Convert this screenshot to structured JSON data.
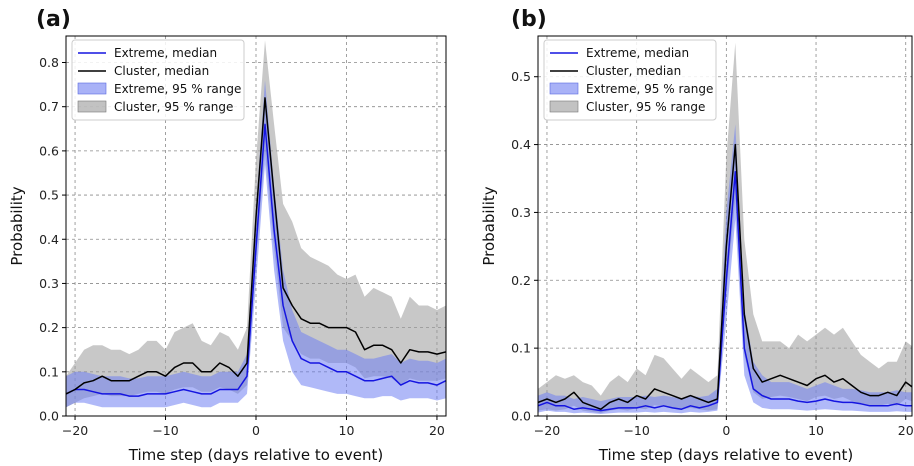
{
  "colors": {
    "extreme": "#1515e0",
    "cluster": "#000000",
    "extreme_band": "#6f7ff2",
    "cluster_band": "#9a9a9a"
  },
  "chart_data": [
    {
      "type": "line",
      "panel_label": "(a)",
      "xlabel": "Time step (days relative to event)",
      "ylabel": "Probability",
      "xlim": [
        -21,
        21
      ],
      "ylim": [
        0,
        0.86
      ],
      "xticks": [
        -20,
        -10,
        0,
        10,
        20
      ],
      "yticks": [
        0.0,
        0.1,
        0.2,
        0.3,
        0.4,
        0.5,
        0.6,
        0.7,
        0.8
      ],
      "ytick_labels": [
        "0.0",
        "0.1",
        "0.2",
        "0.3",
        "0.4",
        "0.5",
        "0.6",
        "0.7",
        "0.8"
      ],
      "grid": true,
      "legend_position": "top-left",
      "legend": [
        "Extreme, median",
        "Cluster, median",
        "Extreme, 95 % range",
        "Cluster, 95 % range"
      ],
      "x": [
        -21,
        -20,
        -19,
        -18,
        -17,
        -16,
        -15,
        -14,
        -13,
        -12,
        -11,
        -10,
        -9,
        -8,
        -7,
        -6,
        -5,
        -4,
        -3,
        -2,
        -1,
        0,
        1,
        2,
        3,
        4,
        5,
        6,
        7,
        8,
        9,
        10,
        11,
        12,
        13,
        14,
        15,
        16,
        17,
        18,
        19,
        20,
        21
      ],
      "series": [
        {
          "name": "Extreme, median",
          "kind": "line",
          "values": [
            0.05,
            0.06,
            0.06,
            0.055,
            0.05,
            0.05,
            0.05,
            0.045,
            0.045,
            0.05,
            0.05,
            0.05,
            0.055,
            0.06,
            0.055,
            0.05,
            0.05,
            0.06,
            0.06,
            0.06,
            0.09,
            0.38,
            0.66,
            0.42,
            0.25,
            0.17,
            0.13,
            0.12,
            0.12,
            0.11,
            0.1,
            0.1,
            0.09,
            0.08,
            0.08,
            0.085,
            0.09,
            0.07,
            0.08,
            0.075,
            0.075,
            0.07,
            0.08
          ]
        },
        {
          "name": "Cluster, median",
          "kind": "line",
          "values": [
            0.05,
            0.06,
            0.075,
            0.08,
            0.09,
            0.08,
            0.08,
            0.08,
            0.09,
            0.1,
            0.1,
            0.09,
            0.11,
            0.12,
            0.12,
            0.1,
            0.1,
            0.12,
            0.11,
            0.09,
            0.12,
            0.45,
            0.72,
            0.5,
            0.29,
            0.25,
            0.22,
            0.21,
            0.21,
            0.2,
            0.2,
            0.2,
            0.19,
            0.15,
            0.16,
            0.16,
            0.15,
            0.12,
            0.15,
            0.145,
            0.145,
            0.14,
            0.145
          ]
        },
        {
          "name": "Extreme, 95 % range",
          "kind": "band",
          "low": [
            0.02,
            0.03,
            0.03,
            0.025,
            0.02,
            0.02,
            0.02,
            0.02,
            0.02,
            0.02,
            0.02,
            0.02,
            0.025,
            0.03,
            0.025,
            0.02,
            0.02,
            0.03,
            0.03,
            0.03,
            0.05,
            0.3,
            0.57,
            0.33,
            0.17,
            0.1,
            0.07,
            0.065,
            0.06,
            0.055,
            0.05,
            0.05,
            0.045,
            0.04,
            0.04,
            0.045,
            0.045,
            0.035,
            0.04,
            0.04,
            0.04,
            0.035,
            0.04
          ],
          "high": [
            0.09,
            0.1,
            0.1,
            0.095,
            0.09,
            0.09,
            0.09,
            0.085,
            0.085,
            0.09,
            0.09,
            0.09,
            0.095,
            0.1,
            0.095,
            0.09,
            0.09,
            0.1,
            0.1,
            0.1,
            0.14,
            0.47,
            0.76,
            0.52,
            0.33,
            0.24,
            0.19,
            0.18,
            0.17,
            0.16,
            0.15,
            0.15,
            0.14,
            0.13,
            0.13,
            0.135,
            0.14,
            0.12,
            0.13,
            0.125,
            0.125,
            0.12,
            0.13
          ]
        },
        {
          "name": "Cluster, 95 % range",
          "kind": "band",
          "low": [
            0.02,
            0.03,
            0.04,
            0.045,
            0.05,
            0.045,
            0.045,
            0.045,
            0.05,
            0.055,
            0.055,
            0.05,
            0.06,
            0.065,
            0.065,
            0.055,
            0.055,
            0.065,
            0.06,
            0.05,
            0.07,
            0.35,
            0.6,
            0.38,
            0.2,
            0.17,
            0.14,
            0.13,
            0.13,
            0.12,
            0.12,
            0.12,
            0.11,
            0.085,
            0.09,
            0.09,
            0.085,
            0.07,
            0.085,
            0.08,
            0.08,
            0.08,
            0.085
          ],
          "high": [
            0.09,
            0.12,
            0.15,
            0.16,
            0.16,
            0.15,
            0.15,
            0.14,
            0.15,
            0.17,
            0.17,
            0.15,
            0.19,
            0.2,
            0.21,
            0.17,
            0.16,
            0.19,
            0.18,
            0.15,
            0.2,
            0.58,
            0.85,
            0.66,
            0.48,
            0.44,
            0.38,
            0.36,
            0.35,
            0.34,
            0.32,
            0.31,
            0.32,
            0.27,
            0.29,
            0.28,
            0.27,
            0.22,
            0.27,
            0.25,
            0.25,
            0.24,
            0.25
          ]
        }
      ]
    },
    {
      "type": "line",
      "panel_label": "(b)",
      "xlabel": "Time step (days relative to event)",
      "ylabel": "Probability",
      "xlim": [
        -21,
        20.7
      ],
      "ylim": [
        0,
        0.56
      ],
      "xticks": [
        -20,
        -10,
        0,
        10,
        20
      ],
      "xtick_labels": [
        "−20",
        "−10",
        "0",
        "10",
        "20"
      ],
      "yticks": [
        0.0,
        0.1,
        0.2,
        0.3,
        0.4,
        0.5
      ],
      "ytick_labels": [
        "0.0",
        "0.1",
        "0.2",
        "0.3",
        "0.4",
        "0.5"
      ],
      "grid": true,
      "legend_position": "top-left",
      "legend": [
        "Extreme, median",
        "Cluster, median",
        "Extreme, 95 % range",
        "Cluster, 95 % range"
      ],
      "x": [
        -21,
        -20,
        -19,
        -18,
        -17,
        -16,
        -15,
        -14,
        -13,
        -12,
        -11,
        -10,
        -9,
        -8,
        -7,
        -6,
        -5,
        -4,
        -3,
        -2,
        -1,
        0,
        1,
        2,
        3,
        4,
        5,
        6,
        7,
        8,
        9,
        10,
        11,
        12,
        13,
        14,
        15,
        16,
        17,
        18,
        19,
        20,
        21
      ],
      "series": [
        {
          "name": "Extreme, median",
          "kind": "line",
          "values": [
            0.015,
            0.02,
            0.015,
            0.015,
            0.01,
            0.012,
            0.01,
            0.008,
            0.01,
            0.012,
            0.012,
            0.012,
            0.015,
            0.012,
            0.015,
            0.012,
            0.01,
            0.015,
            0.012,
            0.015,
            0.02,
            0.2,
            0.36,
            0.1,
            0.04,
            0.03,
            0.025,
            0.025,
            0.025,
            0.022,
            0.02,
            0.022,
            0.025,
            0.022,
            0.02,
            0.02,
            0.018,
            0.015,
            0.015,
            0.015,
            0.018,
            0.015,
            0.015
          ]
        },
        {
          "name": "Cluster, median",
          "kind": "line",
          "values": [
            0.02,
            0.025,
            0.02,
            0.025,
            0.035,
            0.02,
            0.015,
            0.01,
            0.02,
            0.025,
            0.02,
            0.03,
            0.025,
            0.04,
            0.035,
            0.03,
            0.025,
            0.03,
            0.025,
            0.02,
            0.025,
            0.25,
            0.4,
            0.15,
            0.07,
            0.05,
            0.055,
            0.06,
            0.055,
            0.05,
            0.045,
            0.055,
            0.06,
            0.05,
            0.055,
            0.045,
            0.035,
            0.03,
            0.03,
            0.035,
            0.03,
            0.05,
            0.04
          ]
        },
        {
          "name": "Extreme, 95 % range",
          "kind": "band",
          "low": [
            0.005,
            0.008,
            0.006,
            0.006,
            0.004,
            0.005,
            0.004,
            0.003,
            0.004,
            0.005,
            0.005,
            0.005,
            0.006,
            0.005,
            0.006,
            0.005,
            0.004,
            0.006,
            0.005,
            0.006,
            0.008,
            0.14,
            0.29,
            0.06,
            0.02,
            0.012,
            0.01,
            0.01,
            0.01,
            0.009,
            0.008,
            0.009,
            0.01,
            0.009,
            0.008,
            0.008,
            0.007,
            0.006,
            0.006,
            0.006,
            0.007,
            0.006,
            0.006
          ],
          "high": [
            0.03,
            0.035,
            0.03,
            0.03,
            0.025,
            0.028,
            0.025,
            0.022,
            0.025,
            0.028,
            0.028,
            0.028,
            0.03,
            0.028,
            0.03,
            0.028,
            0.025,
            0.03,
            0.028,
            0.03,
            0.04,
            0.3,
            0.43,
            0.16,
            0.08,
            0.06,
            0.05,
            0.05,
            0.05,
            0.045,
            0.04,
            0.045,
            0.05,
            0.045,
            0.04,
            0.04,
            0.038,
            0.035,
            0.035,
            0.035,
            0.038,
            0.035,
            0.035
          ]
        },
        {
          "name": "Cluster, 95 % range",
          "kind": "band",
          "low": [
            0.008,
            0.01,
            0.008,
            0.01,
            0.015,
            0.008,
            0.006,
            0.004,
            0.008,
            0.01,
            0.008,
            0.012,
            0.01,
            0.016,
            0.014,
            0.012,
            0.01,
            0.012,
            0.01,
            0.008,
            0.01,
            0.18,
            0.32,
            0.09,
            0.035,
            0.025,
            0.028,
            0.03,
            0.028,
            0.025,
            0.022,
            0.028,
            0.03,
            0.025,
            0.028,
            0.022,
            0.018,
            0.015,
            0.015,
            0.018,
            0.015,
            0.025,
            0.02
          ],
          "high": [
            0.04,
            0.05,
            0.06,
            0.055,
            0.06,
            0.05,
            0.045,
            0.03,
            0.05,
            0.06,
            0.05,
            0.07,
            0.06,
            0.09,
            0.085,
            0.07,
            0.055,
            0.07,
            0.06,
            0.05,
            0.06,
            0.38,
            0.55,
            0.26,
            0.15,
            0.11,
            0.11,
            0.11,
            0.1,
            0.12,
            0.11,
            0.12,
            0.13,
            0.12,
            0.13,
            0.11,
            0.09,
            0.08,
            0.07,
            0.08,
            0.08,
            0.11,
            0.1
          ]
        }
      ]
    }
  ]
}
